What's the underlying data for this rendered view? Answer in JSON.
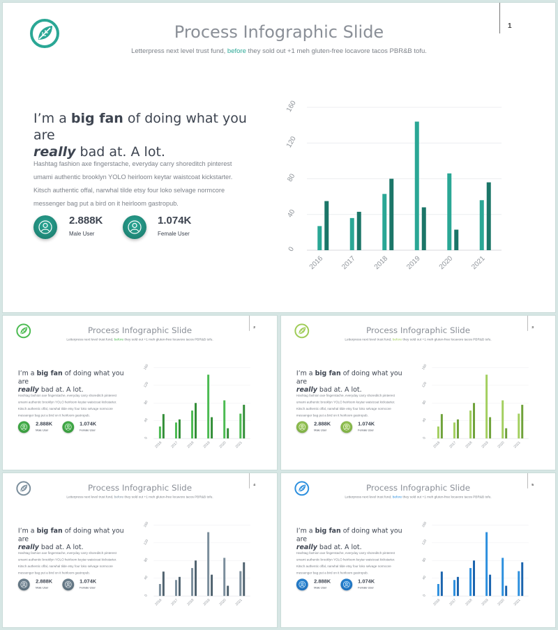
{
  "slides": [
    {
      "page": "1",
      "accent_light": "#2aa795",
      "accent_dark": "#1b7668",
      "logo_color": "#2aa795"
    },
    {
      "page": "2",
      "accent_light": "#4cbb52",
      "accent_dark": "#328e37",
      "logo_color": "#4cbb52"
    },
    {
      "page": "3",
      "accent_light": "#a3cf5f",
      "accent_dark": "#6fa23a",
      "logo_color": "#9fcc57"
    },
    {
      "page": "4",
      "accent_light": "#7b8e9c",
      "accent_dark": "#4f626f",
      "logo_color": "#7b8e9c"
    },
    {
      "page": "5",
      "accent_light": "#2c8fde",
      "accent_dark": "#1a64ae",
      "logo_color": "#2c8fde"
    }
  ],
  "common": {
    "title": "Process Infographic Slide",
    "subtitle_pre": "Letterpress next level trust fund, ",
    "subtitle_accent": "before",
    "subtitle_post": " they sold out +1 meh gluten-free locavore tacos PBR&B tofu.",
    "headline_1": "I’m a ",
    "headline_bold": "big fan",
    "headline_2": " of doing what you are",
    "headline_italic": "really",
    "headline_3": " bad at. A lot.",
    "body": "Hashtag fashion axe fingerstache, everyday carry shoreditch pinterest umami authentic brooklyn YOLO heirloom keytar waistcoat kickstarter. Kitsch authentic offal, narwhal tilde etsy four loko selvage normcore messenger bag put a bird on it heirloom gastropub.",
    "stats": [
      {
        "value": "2.888K",
        "label": "Male User",
        "icon": "user-icon"
      },
      {
        "value": "1.074K",
        "label": "Female User",
        "icon": "user-icon"
      }
    ],
    "logo_icon": "leaf-icon"
  },
  "chart_data": {
    "type": "bar",
    "categories": [
      "2016",
      "2017",
      "2018",
      "2019",
      "2020",
      "2021"
    ],
    "series": [
      {
        "values": [
          27,
          36,
          63,
          144,
          86,
          56
        ]
      },
      {
        "values": [
          55,
          43,
          80,
          48,
          23,
          76
        ]
      }
    ],
    "ylim": [
      0,
      160
    ],
    "yticks": [
      0,
      40,
      80,
      120,
      160
    ],
    "grid": true
  }
}
